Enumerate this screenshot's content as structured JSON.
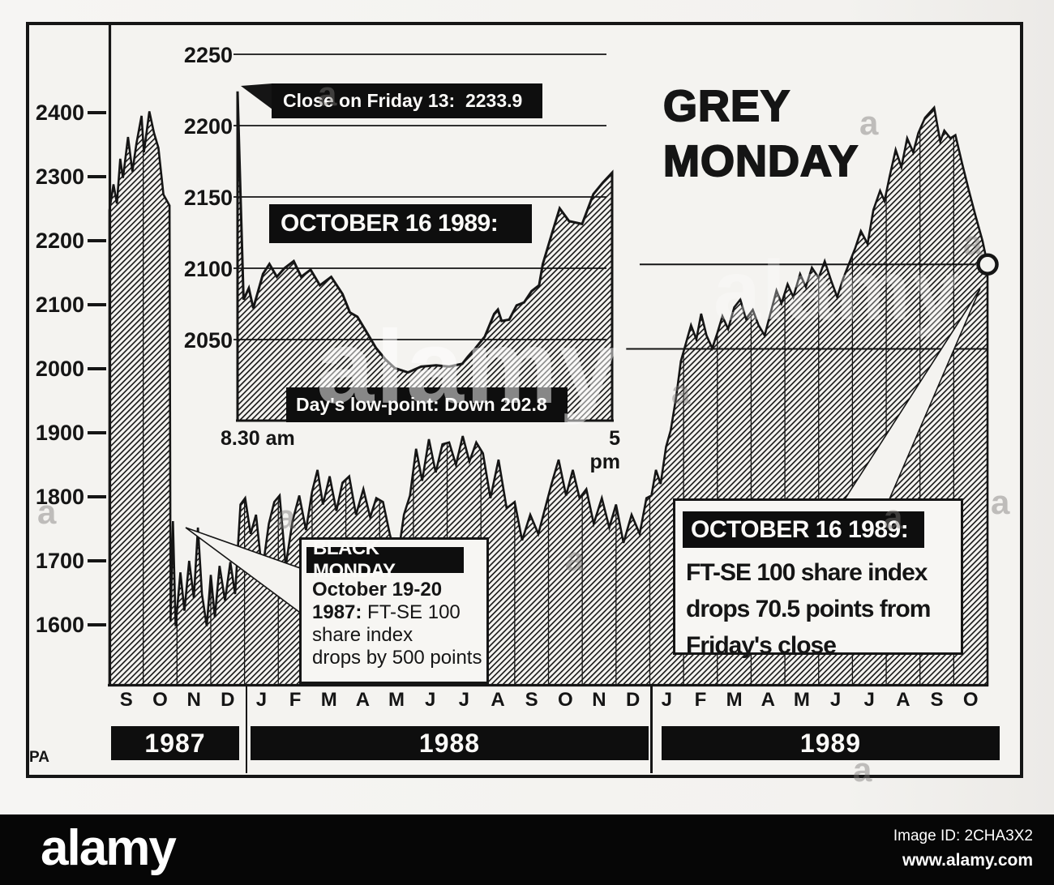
{
  "photo_credit": "PA",
  "title": {
    "line1": "GREY",
    "line2": "MONDAY"
  },
  "colors": {
    "ink": "#151515",
    "paper": "#f4f3f0",
    "bar_black": "#0e0e0e",
    "white_text": "#fbfaf8"
  },
  "chart_data": [
    {
      "id": "main",
      "type": "area",
      "series": "FT-SE 100 share index",
      "title": "GREY MONDAY",
      "ylim": [
        1505,
        2465
      ],
      "yticks": [
        2400,
        2300,
        2200,
        2100,
        2000,
        1900,
        1800,
        1700,
        1600
      ],
      "grid": "off",
      "x_months": [
        "S",
        "O",
        "N",
        "D",
        "J",
        "F",
        "M",
        "A",
        "M",
        "J",
        "J",
        "A",
        "S",
        "O",
        "N",
        "D",
        "J",
        "F",
        "M",
        "A",
        "M",
        "J",
        "J",
        "A",
        "S",
        "O"
      ],
      "year_bands": [
        {
          "label": "1987",
          "start_month": 0,
          "end_month": 4
        },
        {
          "label": "1988",
          "start_month": 4,
          "end_month": 16
        },
        {
          "label": "1989",
          "start_month": 16,
          "end_month": 26
        }
      ],
      "points": [
        [
          0,
          2248
        ],
        [
          0.12,
          2288
        ],
        [
          0.22,
          2258
        ],
        [
          0.32,
          2328
        ],
        [
          0.4,
          2298
        ],
        [
          0.55,
          2362
        ],
        [
          0.68,
          2308
        ],
        [
          0.8,
          2352
        ],
        [
          0.95,
          2395
        ],
        [
          1.02,
          2338
        ],
        [
          1.18,
          2402
        ],
        [
          1.32,
          2368
        ],
        [
          1.45,
          2345
        ],
        [
          1.6,
          2272
        ],
        [
          1.78,
          2255
        ],
        [
          1.81,
          1605
        ],
        [
          1.88,
          1762
        ],
        [
          1.96,
          1598
        ],
        [
          2.1,
          1682
        ],
        [
          2.22,
          1622
        ],
        [
          2.36,
          1700
        ],
        [
          2.5,
          1642
        ],
        [
          2.62,
          1752
        ],
        [
          2.74,
          1648
        ],
        [
          2.88,
          1598
        ],
        [
          3,
          1678
        ],
        [
          3.12,
          1612
        ],
        [
          3.26,
          1692
        ],
        [
          3.42,
          1638
        ],
        [
          3.58,
          1698
        ],
        [
          3.72,
          1648
        ],
        [
          3.88,
          1788
        ],
        [
          4.02,
          1798
        ],
        [
          4.18,
          1742
        ],
        [
          4.34,
          1772
        ],
        [
          4.52,
          1682
        ],
        [
          4.72,
          1758
        ],
        [
          4.88,
          1792
        ],
        [
          5.04,
          1802
        ],
        [
          5.22,
          1692
        ],
        [
          5.42,
          1762
        ],
        [
          5.62,
          1802
        ],
        [
          5.82,
          1748
        ],
        [
          6,
          1808
        ],
        [
          6.16,
          1842
        ],
        [
          6.32,
          1788
        ],
        [
          6.52,
          1832
        ],
        [
          6.72,
          1778
        ],
        [
          6.9,
          1822
        ],
        [
          7.1,
          1832
        ],
        [
          7.3,
          1772
        ],
        [
          7.52,
          1812
        ],
        [
          7.72,
          1768
        ],
        [
          7.9,
          1798
        ],
        [
          8.1,
          1792
        ],
        [
          8.3,
          1742
        ],
        [
          8.52,
          1698
        ],
        [
          8.72,
          1772
        ],
        [
          8.9,
          1802
        ],
        [
          9.08,
          1875
        ],
        [
          9.26,
          1825
        ],
        [
          9.46,
          1890
        ],
        [
          9.66,
          1838
        ],
        [
          9.86,
          1882
        ],
        [
          10.06,
          1885
        ],
        [
          10.26,
          1850
        ],
        [
          10.46,
          1895
        ],
        [
          10.66,
          1855
        ],
        [
          10.86,
          1885
        ],
        [
          11.06,
          1868
        ],
        [
          11.28,
          1798
        ],
        [
          11.52,
          1858
        ],
        [
          11.76,
          1782
        ],
        [
          12,
          1792
        ],
        [
          12.22,
          1732
        ],
        [
          12.46,
          1772
        ],
        [
          12.7,
          1742
        ],
        [
          12.9,
          1782
        ],
        [
          13.1,
          1822
        ],
        [
          13.3,
          1858
        ],
        [
          13.52,
          1802
        ],
        [
          13.72,
          1842
        ],
        [
          13.92,
          1798
        ],
        [
          14.12,
          1812
        ],
        [
          14.34,
          1758
        ],
        [
          14.58,
          1798
        ],
        [
          14.8,
          1752
        ],
        [
          15,
          1788
        ],
        [
          15.22,
          1728
        ],
        [
          15.46,
          1772
        ],
        [
          15.7,
          1742
        ],
        [
          15.9,
          1798
        ],
        [
          16.05,
          1802
        ],
        [
          16.18,
          1842
        ],
        [
          16.32,
          1820
        ],
        [
          16.48,
          1878
        ],
        [
          16.62,
          1904
        ],
        [
          16.78,
          1956
        ],
        [
          16.92,
          2012
        ],
        [
          17.08,
          2042
        ],
        [
          17.22,
          2068
        ],
        [
          17.38,
          2046
        ],
        [
          17.52,
          2086
        ],
        [
          17.68,
          2052
        ],
        [
          17.85,
          2032
        ],
        [
          18,
          2056
        ],
        [
          18.15,
          2082
        ],
        [
          18.32,
          2062
        ],
        [
          18.5,
          2096
        ],
        [
          18.68,
          2108
        ],
        [
          18.85,
          2078
        ],
        [
          19.05,
          2092
        ],
        [
          19.22,
          2068
        ],
        [
          19.4,
          2052
        ],
        [
          19.58,
          2088
        ],
        [
          19.75,
          2122
        ],
        [
          19.9,
          2102
        ],
        [
          20.08,
          2132
        ],
        [
          20.25,
          2112
        ],
        [
          20.45,
          2148
        ],
        [
          20.62,
          2128
        ],
        [
          20.8,
          2158
        ],
        [
          21,
          2142
        ],
        [
          21.18,
          2168
        ],
        [
          21.38,
          2136
        ],
        [
          21.55,
          2112
        ],
        [
          21.72,
          2140
        ],
        [
          21.9,
          2164
        ],
        [
          22.08,
          2188
        ],
        [
          22.25,
          2215
        ],
        [
          22.45,
          2195
        ],
        [
          22.62,
          2248
        ],
        [
          22.82,
          2278
        ],
        [
          22.95,
          2262
        ],
        [
          23.1,
          2300
        ],
        [
          23.28,
          2342
        ],
        [
          23.45,
          2315
        ],
        [
          23.62,
          2360
        ],
        [
          23.8,
          2338
        ],
        [
          23.95,
          2368
        ],
        [
          24.15,
          2392
        ],
        [
          24.42,
          2408
        ],
        [
          24.6,
          2355
        ],
        [
          24.72,
          2372
        ],
        [
          24.9,
          2360
        ],
        [
          25.05,
          2365
        ],
        [
          25.25,
          2320
        ],
        [
          25.45,
          2278
        ],
        [
          25.65,
          2238
        ],
        [
          25.85,
          2200
        ],
        [
          26,
          2163
        ]
      ],
      "end_marker": {
        "month": 26,
        "value": 2163,
        "style": "open-circle"
      },
      "reference_lines": [
        {
          "value": 2163,
          "from_month": 15.7,
          "to_month": 25.66,
          "meaning": "Grey Monday close"
        },
        {
          "value": 2031,
          "from_month": 15.3,
          "to_month": 26,
          "meaning": "Day's low on main scale"
        }
      ]
    },
    {
      "id": "intraday_inset",
      "type": "area",
      "title_bar": "OCTOBER 16 1989:",
      "x_start_label": "8.30 am",
      "x_end_label": "5 pm",
      "yticks": [
        2250,
        2200,
        2150,
        2100,
        2050
      ],
      "ymin_drawn": 1993,
      "points": [
        [
          0,
          2224
        ],
        [
          0.008,
          2150
        ],
        [
          0.016,
          2078
        ],
        [
          0.03,
          2086
        ],
        [
          0.042,
          2072
        ],
        [
          0.068,
          2096
        ],
        [
          0.085,
          2103
        ],
        [
          0.105,
          2094
        ],
        [
          0.125,
          2100
        ],
        [
          0.15,
          2105
        ],
        [
          0.17,
          2094
        ],
        [
          0.195,
          2099
        ],
        [
          0.22,
          2088
        ],
        [
          0.25,
          2094
        ],
        [
          0.28,
          2082
        ],
        [
          0.3,
          2069
        ],
        [
          0.32,
          2066
        ],
        [
          0.345,
          2055
        ],
        [
          0.37,
          2044
        ],
        [
          0.395,
          2036
        ],
        [
          0.42,
          2030
        ],
        [
          0.455,
          2027
        ],
        [
          0.49,
          2031
        ],
        [
          0.53,
          2032
        ],
        [
          0.565,
          2031
        ],
        [
          0.6,
          2033
        ],
        [
          0.615,
          2038
        ],
        [
          0.635,
          2044
        ],
        [
          0.66,
          2052
        ],
        [
          0.685,
          2068
        ],
        [
          0.695,
          2071
        ],
        [
          0.705,
          2063
        ],
        [
          0.725,
          2064
        ],
        [
          0.745,
          2074
        ],
        [
          0.765,
          2076
        ],
        [
          0.785,
          2084
        ],
        [
          0.805,
          2088
        ],
        [
          0.815,
          2103
        ],
        [
          0.84,
          2125
        ],
        [
          0.86,
          2142
        ],
        [
          0.885,
          2133
        ],
        [
          0.92,
          2131
        ],
        [
          0.95,
          2152
        ],
        [
          0.975,
          2160
        ],
        [
          1,
          2167
        ]
      ]
    }
  ],
  "annotations": {
    "close_friday": "Close on Friday 13:  2233.9",
    "days_low": "Day's low-point: Down 202.8",
    "black_monday": {
      "header": "BLACK MONDAY",
      "bold1": "October 19-20",
      "bold2": "1987:",
      "rest2": " FT-SE 100",
      "line3": "share index",
      "line4": "drops by 500 points"
    },
    "grey_monday_note": {
      "header": "OCTOBER 16 1989:",
      "lines": [
        "FT-SE 100 share index",
        "drops 70.5 points from",
        "Friday's close"
      ]
    }
  },
  "watermark": {
    "brand": "alamy",
    "scatter_glyph": "a",
    "image_id": "Image ID: 2CHA3X2",
    "url": "www.alamy.com"
  }
}
